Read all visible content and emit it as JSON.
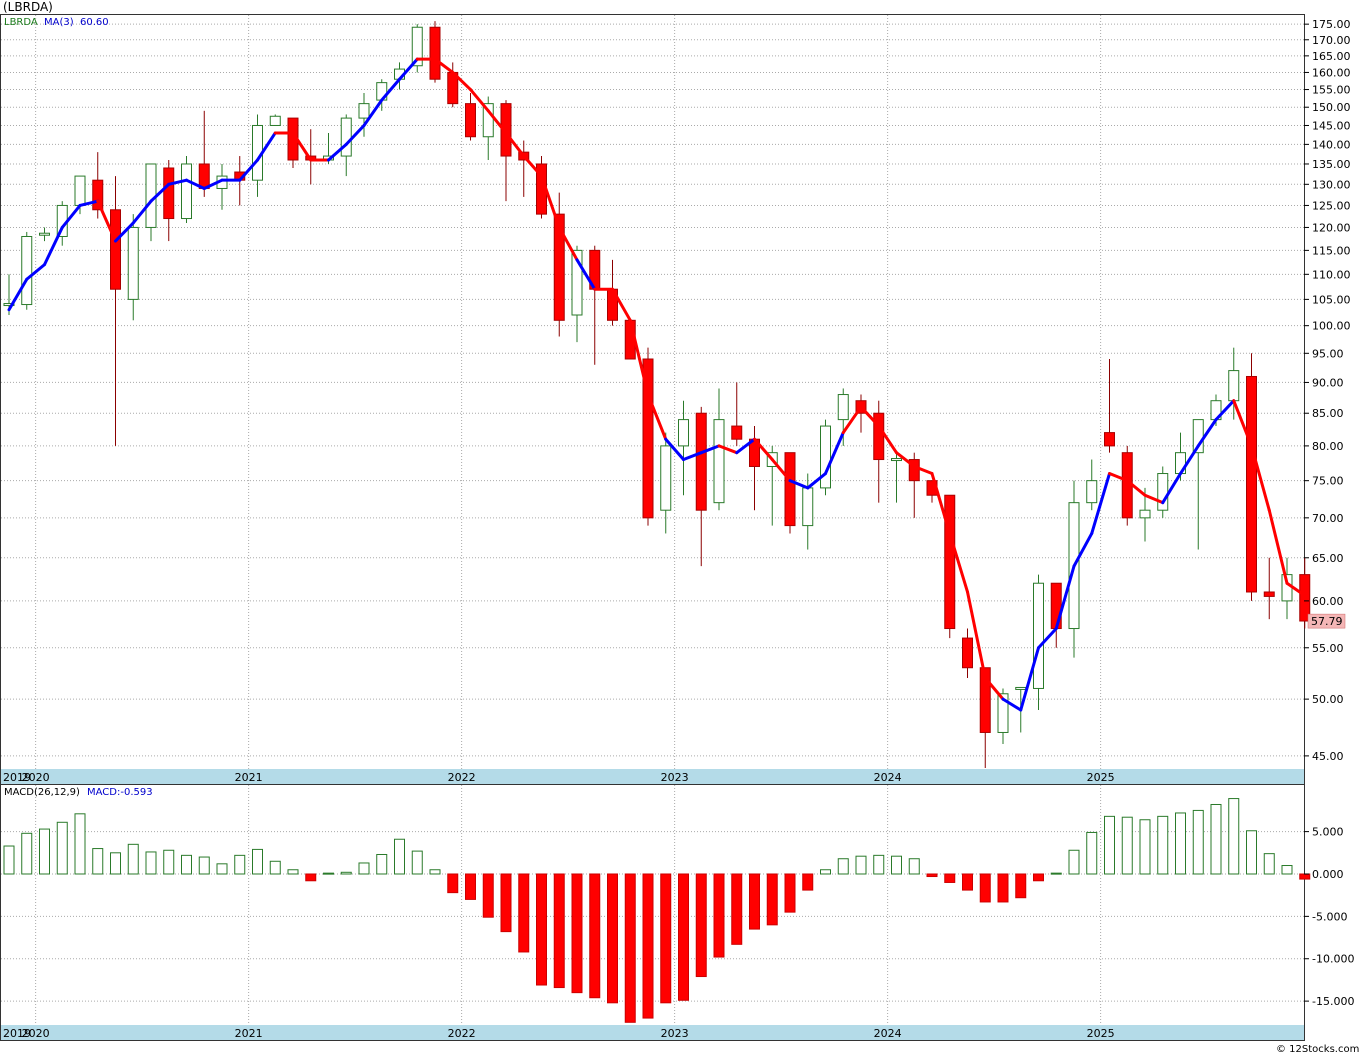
{
  "title": "(LBRDA)",
  "copyright": "© 12Stocks.com",
  "colors": {
    "up": "#2a7a2a",
    "down": "#ff0000",
    "ma_up": "#0000ff",
    "ma_down": "#ff0000",
    "axis_band": "#b4dbe8",
    "grid": "#aaaaaa",
    "last_price_box": "#f4b6b6"
  },
  "chart_data": [
    {
      "type": "candlestick",
      "interval": "monthly",
      "symbol": "LBRDA",
      "legend": {
        "symbol": "LBRDA",
        "ma_label": "MA(3)",
        "ma_value": "60.60",
        "placement": "top-left"
      },
      "last_price": "57.79",
      "yscale": "log",
      "ylim": [
        44,
        178
      ],
      "yticks": [
        45,
        50,
        55,
        60,
        65,
        70,
        75,
        80,
        85,
        90,
        95,
        100,
        105,
        110,
        115,
        120,
        125,
        130,
        135,
        140,
        145,
        150,
        155,
        160,
        165,
        170,
        175
      ],
      "ytick_labels": [
        "45.00",
        "50.00",
        "55.00",
        "60.00",
        "65.00",
        "70.00",
        "75.00",
        "80.00",
        "85.00",
        "90.00",
        "95.00",
        "100.00",
        "105.00",
        "110.00",
        "115.00",
        "120.00",
        "125.00",
        "130.00",
        "135.00",
        "140.00",
        "145.00",
        "150.00",
        "155.00",
        "160.00",
        "165.00",
        "170.00",
        "175.00"
      ],
      "year_labels": [
        {
          "label": "2019",
          "month_index": -2
        },
        {
          "label": "2020",
          "month_index": 2
        },
        {
          "label": "2021",
          "month_index": 14
        },
        {
          "label": "2022",
          "month_index": 26
        },
        {
          "label": "2023",
          "month_index": 38
        },
        {
          "label": "2024",
          "month_index": 50
        },
        {
          "label": "2025",
          "month_index": 62
        }
      ],
      "grid": true,
      "candles": [
        {
          "o": 104,
          "h": 110,
          "l": 102,
          "c": 104
        },
        {
          "o": 104,
          "h": 119,
          "l": 103,
          "c": 118
        },
        {
          "o": 118.5,
          "h": 120,
          "l": 117,
          "c": 118.5
        },
        {
          "o": 118,
          "h": 126,
          "l": 116,
          "c": 125
        },
        {
          "o": 125,
          "h": 132,
          "l": 123,
          "c": 132
        },
        {
          "o": 131,
          "h": 138,
          "l": 122,
          "c": 124
        },
        {
          "o": 124,
          "h": 132,
          "l": 80,
          "c": 107
        },
        {
          "o": 105,
          "h": 123,
          "l": 101,
          "c": 120
        },
        {
          "o": 120,
          "h": 135,
          "l": 117,
          "c": 135
        },
        {
          "o": 134,
          "h": 136,
          "l": 117,
          "c": 122
        },
        {
          "o": 122,
          "h": 137,
          "l": 121,
          "c": 135
        },
        {
          "o": 135,
          "h": 149,
          "l": 127,
          "c": 129
        },
        {
          "o": 129,
          "h": 135,
          "l": 124,
          "c": 132
        },
        {
          "o": 133,
          "h": 137,
          "l": 125,
          "c": 131
        },
        {
          "o": 131,
          "h": 148,
          "l": 127,
          "c": 145
        },
        {
          "o": 145,
          "h": 148,
          "l": 145,
          "c": 147.5
        },
        {
          "o": 147,
          "h": 147,
          "l": 134,
          "c": 136
        },
        {
          "o": 137,
          "h": 144,
          "l": 130,
          "c": 136
        },
        {
          "o": 136,
          "h": 143,
          "l": 135,
          "c": 137
        },
        {
          "o": 137,
          "h": 148,
          "l": 132,
          "c": 147
        },
        {
          "o": 147,
          "h": 154,
          "l": 142,
          "c": 151
        },
        {
          "o": 152,
          "h": 158,
          "l": 149,
          "c": 157
        },
        {
          "o": 158,
          "h": 163,
          "l": 155,
          "c": 161
        },
        {
          "o": 162,
          "h": 175,
          "l": 160,
          "c": 174
        },
        {
          "o": 174,
          "h": 176,
          "l": 157,
          "c": 158
        },
        {
          "o": 160,
          "h": 163,
          "l": 150,
          "c": 151
        },
        {
          "o": 151,
          "h": 154,
          "l": 141,
          "c": 142
        },
        {
          "o": 142,
          "h": 153,
          "l": 136,
          "c": 151
        },
        {
          "o": 151,
          "h": 152,
          "l": 126,
          "c": 137
        },
        {
          "o": 138,
          "h": 141,
          "l": 127,
          "c": 136
        },
        {
          "o": 135,
          "h": 137,
          "l": 122,
          "c": 123
        },
        {
          "o": 123,
          "h": 128,
          "l": 98,
          "c": 101
        },
        {
          "o": 102,
          "h": 116,
          "l": 97,
          "c": 115
        },
        {
          "o": 115,
          "h": 116,
          "l": 93,
          "c": 107
        },
        {
          "o": 107,
          "h": 113,
          "l": 100,
          "c": 101
        },
        {
          "o": 101,
          "h": 101,
          "l": 94,
          "c": 94
        },
        {
          "o": 94,
          "h": 96,
          "l": 69,
          "c": 70
        },
        {
          "o": 71,
          "h": 82,
          "l": 68,
          "c": 80
        },
        {
          "o": 80,
          "h": 87,
          "l": 73,
          "c": 84
        },
        {
          "o": 85,
          "h": 86,
          "l": 64,
          "c": 71
        },
        {
          "o": 72,
          "h": 89,
          "l": 71,
          "c": 84
        },
        {
          "o": 83,
          "h": 90,
          "l": 80,
          "c": 81
        },
        {
          "o": 81,
          "h": 83,
          "l": 71,
          "c": 77
        },
        {
          "o": 77,
          "h": 80,
          "l": 69,
          "c": 79
        },
        {
          "o": 79,
          "h": 79,
          "l": 68,
          "c": 69
        },
        {
          "o": 69,
          "h": 76,
          "l": 66,
          "c": 74
        },
        {
          "o": 74,
          "h": 84,
          "l": 73,
          "c": 83
        },
        {
          "o": 84,
          "h": 89,
          "l": 80,
          "c": 88
        },
        {
          "o": 87,
          "h": 88,
          "l": 82,
          "c": 85
        },
        {
          "o": 85,
          "h": 87,
          "l": 72,
          "c": 78
        },
        {
          "o": 78,
          "h": 79,
          "l": 72,
          "c": 78
        },
        {
          "o": 78,
          "h": 79,
          "l": 70,
          "c": 75
        },
        {
          "o": 75,
          "h": 75,
          "l": 72,
          "c": 73
        },
        {
          "o": 73,
          "h": 73,
          "l": 56,
          "c": 57
        },
        {
          "o": 56,
          "h": 57,
          "l": 52,
          "c": 53
        },
        {
          "o": 53,
          "h": 53,
          "l": 44,
          "c": 47
        },
        {
          "o": 47,
          "h": 51,
          "l": 46,
          "c": 50.5
        },
        {
          "o": 51,
          "h": 51,
          "l": 47,
          "c": 51
        },
        {
          "o": 51,
          "h": 63,
          "l": 49,
          "c": 62
        },
        {
          "o": 62,
          "h": 62,
          "l": 55,
          "c": 57
        },
        {
          "o": 57,
          "h": 75,
          "l": 54,
          "c": 72
        },
        {
          "o": 72,
          "h": 78,
          "l": 71,
          "c": 75
        },
        {
          "o": 82,
          "h": 94,
          "l": 79,
          "c": 80
        },
        {
          "o": 79,
          "h": 80,
          "l": 69,
          "c": 70
        },
        {
          "o": 70,
          "h": 74,
          "l": 67,
          "c": 71
        },
        {
          "o": 71,
          "h": 77,
          "l": 70,
          "c": 76
        },
        {
          "o": 76,
          "h": 82,
          "l": 75,
          "c": 79
        },
        {
          "o": 79,
          "h": 84,
          "l": 66,
          "c": 84
        },
        {
          "o": 84,
          "h": 88,
          "l": 83,
          "c": 87
        },
        {
          "o": 87,
          "h": 96,
          "l": 84,
          "c": 92
        },
        {
          "o": 91,
          "h": 95,
          "l": 60,
          "c": 61
        },
        {
          "o": 61,
          "h": 65,
          "l": 58,
          "c": 60.5
        },
        {
          "o": 60,
          "h": 65,
          "l": 58,
          "c": 63
        },
        {
          "o": 63,
          "h": 65,
          "l": 57,
          "c": 57.8
        }
      ],
      "ma": [
        103,
        109,
        112,
        120,
        125,
        126,
        117,
        121,
        126,
        130,
        131,
        129,
        131,
        131,
        136,
        143,
        143,
        136,
        136,
        140,
        145,
        152,
        158,
        164,
        164,
        160,
        155,
        149,
        143,
        137,
        132,
        120,
        113,
        107,
        107,
        101,
        88,
        81,
        78,
        79,
        80,
        79,
        81,
        78,
        75,
        74,
        76,
        82,
        86,
        83,
        79,
        77,
        76,
        68,
        61,
        52,
        50,
        49,
        55,
        57,
        64,
        68,
        76,
        75,
        73,
        72,
        76,
        80,
        84,
        87,
        80,
        71,
        62,
        60.6
      ],
      "ma_colors": [
        "up",
        "up",
        "up",
        "up",
        "up",
        "up",
        "down",
        "up",
        "up",
        "up",
        "up",
        "up",
        "up",
        "up",
        "up",
        "up",
        "down",
        "down",
        "down",
        "up",
        "up",
        "up",
        "up",
        "up",
        "down",
        "down",
        "down",
        "down",
        "down",
        "down",
        "down",
        "down",
        "down",
        "up",
        "down",
        "down",
        "down",
        "down",
        "up",
        "up",
        "up",
        "down",
        "up",
        "down",
        "down",
        "up",
        "up",
        "up",
        "down",
        "down",
        "down",
        "down",
        "down",
        "down",
        "down",
        "down",
        "down",
        "up",
        "up",
        "up",
        "up",
        "up",
        "up",
        "down",
        "down",
        "down",
        "up",
        "up",
        "up",
        "up",
        "down",
        "down",
        "down",
        "down"
      ]
    },
    {
      "type": "bar",
      "indicator": "MACD",
      "legend": {
        "label": "MACD(26,12,9)",
        "value_label": "MACD:-0.593",
        "placement": "top-left"
      },
      "ylim": [
        -17.7,
        10.5
      ],
      "yticks": [
        -15,
        -10,
        -5,
        0,
        5
      ],
      "ytick_labels": [
        "-15.000",
        "-10.000",
        "-5.000",
        "0.000",
        "5.000"
      ],
      "year_labels": [
        {
          "label": "2019",
          "month_index": -2
        },
        {
          "label": "2020",
          "month_index": 2
        },
        {
          "label": "2021",
          "month_index": 14
        },
        {
          "label": "2022",
          "month_index": 26
        },
        {
          "label": "2023",
          "month_index": 38
        },
        {
          "label": "2024",
          "month_index": 50
        },
        {
          "label": "2025",
          "month_index": 62
        }
      ],
      "grid": true,
      "values": [
        3.3,
        4.8,
        5.3,
        6.1,
        7.1,
        3.0,
        2.5,
        3.5,
        2.6,
        2.8,
        2.2,
        2.0,
        1.2,
        2.2,
        2.9,
        1.5,
        0.5,
        -0.8,
        0.1,
        0.2,
        1.3,
        2.3,
        4.1,
        2.7,
        0.5,
        -2.2,
        -3.0,
        -5.1,
        -6.8,
        -9.2,
        -13.1,
        -13.4,
        -14.0,
        -14.6,
        -15.2,
        -17.5,
        -17.0,
        -15.2,
        -14.9,
        -12.1,
        -9.8,
        -8.3,
        -6.5,
        -6.0,
        -4.5,
        -1.9,
        0.5,
        1.8,
        2.1,
        2.2,
        2.1,
        1.8,
        -0.3,
        -1.0,
        -1.9,
        -3.3,
        -3.3,
        -2.8,
        -0.8,
        0.1,
        2.8,
        4.9,
        6.8,
        6.7,
        6.4,
        6.8,
        7.2,
        7.5,
        8.2,
        8.9,
        5.1,
        2.4,
        1.0,
        -0.6
      ]
    }
  ]
}
